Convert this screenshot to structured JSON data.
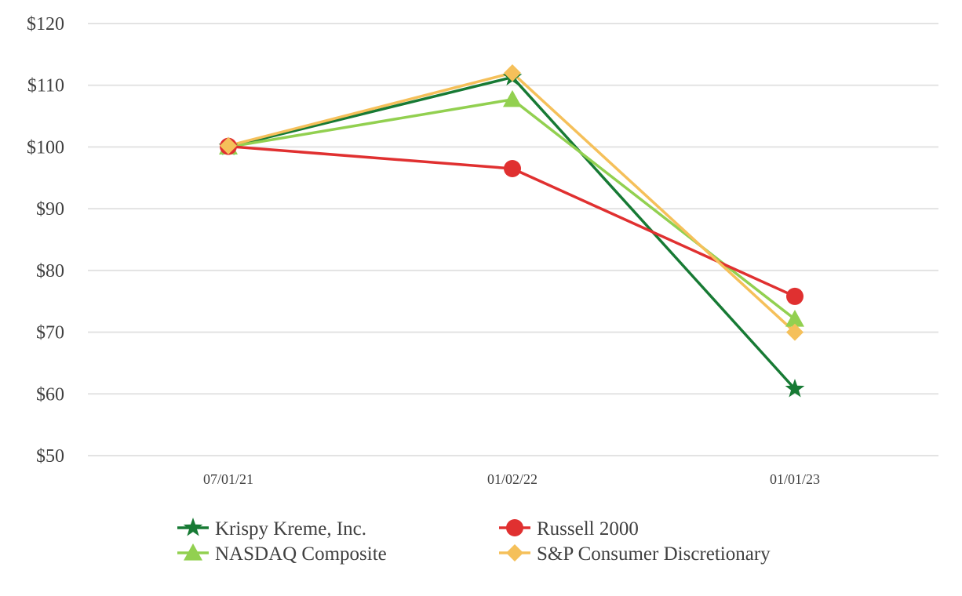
{
  "chart_data": {
    "type": "line",
    "title": "",
    "xlabel": "",
    "ylabel": "",
    "categories": [
      "07/01/21",
      "01/02/22",
      "01/01/23"
    ],
    "yticks": [
      "$50",
      "$60",
      "$70",
      "$80",
      "$90",
      "$100",
      "$110",
      "$120"
    ],
    "ylim": [
      50,
      120
    ],
    "grid": true,
    "legend_position": "bottom",
    "series": [
      {
        "name": "Krispy Kreme, Inc.",
        "values": [
          100,
          111.3,
          60.8
        ],
        "color": "#177a34",
        "marker": "star"
      },
      {
        "name": "NASDAQ Composite",
        "values": [
          100,
          107.7,
          72.1
        ],
        "color": "#92d050",
        "marker": "triangle"
      },
      {
        "name": "Russell 2000",
        "values": [
          100.1,
          96.5,
          75.8
        ],
        "color": "#e03030",
        "marker": "circle"
      },
      {
        "name": "S&P Consumer Discretionary",
        "values": [
          100.2,
          112.0,
          70.0
        ],
        "color": "#f5c05a",
        "marker": "diamond"
      }
    ]
  }
}
